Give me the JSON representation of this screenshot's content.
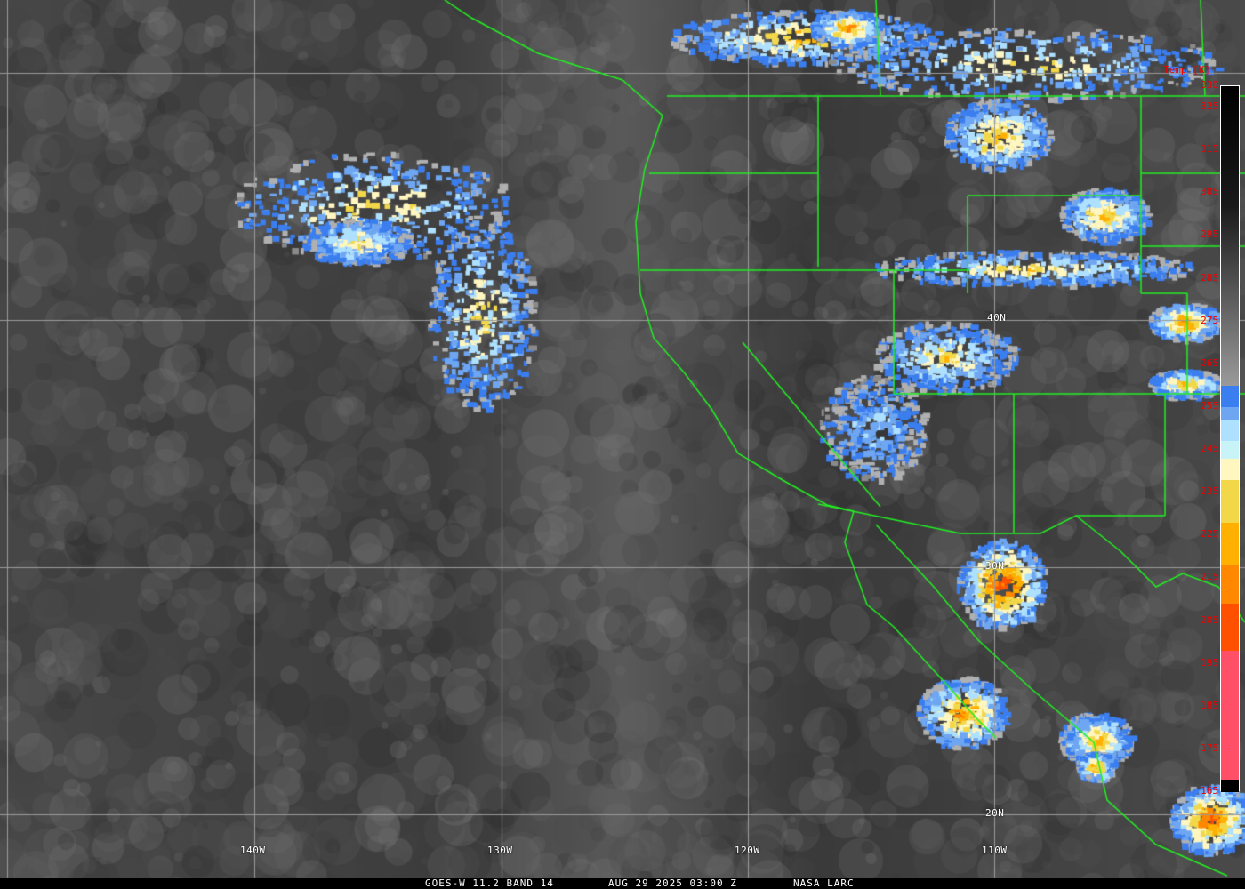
{
  "caption": {
    "satellite": "GOES-W 11.2 BAND 14",
    "datetime": "AUG 29 2025 03:00 Z",
    "source": "NASA LARC"
  },
  "colorbar": {
    "title": "Temp [K]",
    "ticks": [
      "330",
      "325",
      "315",
      "305",
      "295",
      "285",
      "275",
      "265",
      "255",
      "245",
      "235",
      "225",
      "215",
      "205",
      "195",
      "185",
      "175",
      "165"
    ],
    "range_k": [
      165,
      330
    ],
    "segments": [
      {
        "from": 330,
        "to": 260,
        "color": "gradient-black-to-gray"
      },
      {
        "from": 260,
        "to": 255,
        "color": "#3a7ef0"
      },
      {
        "from": 255,
        "to": 252,
        "color": "#6ea6f2"
      },
      {
        "from": 252,
        "to": 247,
        "color": "#aee0ff"
      },
      {
        "from": 247,
        "to": 243,
        "color": "#c8f4f8"
      },
      {
        "from": 243,
        "to": 238,
        "color": "#fff6c0"
      },
      {
        "from": 238,
        "to": 228,
        "color": "#f2d848"
      },
      {
        "from": 228,
        "to": 218,
        "color": "#ffb000"
      },
      {
        "from": 218,
        "to": 209,
        "color": "#ff8800"
      },
      {
        "from": 209,
        "to": 198,
        "color": "#ff5000"
      },
      {
        "from": 198,
        "to": 168,
        "color": "#ff5068"
      },
      {
        "from": 168,
        "to": 165,
        "color": "#000000"
      }
    ]
  },
  "grid_labels": {
    "longitudes": [
      "140W",
      "130W",
      "120W",
      "110W"
    ],
    "latitudes": [
      "40N",
      "30N",
      "20N"
    ]
  },
  "colors": {
    "borders": "#22ee22",
    "grid": "#9a9a9a",
    "ticks": "#ee0000"
  }
}
